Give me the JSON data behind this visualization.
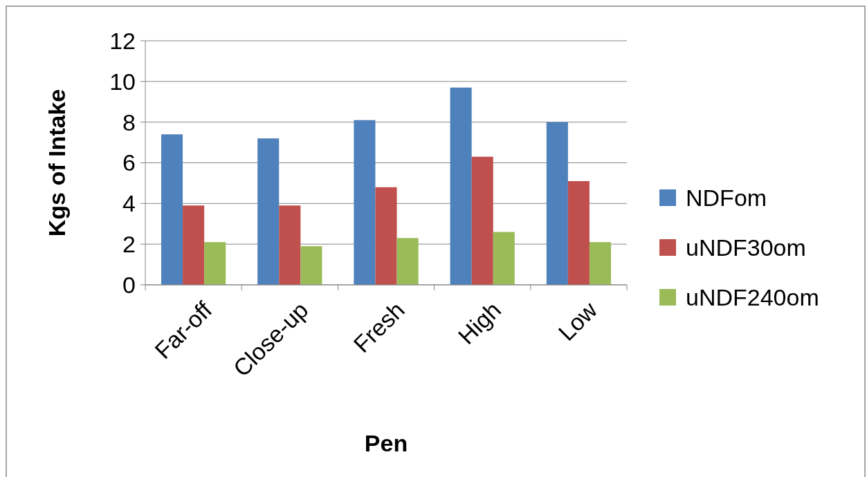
{
  "chart_data": {
    "type": "bar",
    "xlabel": "Pen",
    "ylabel": "Kgs of Intake",
    "categories": [
      "Far-off",
      "Close-up",
      "Fresh",
      "High",
      "Low"
    ],
    "series": [
      {
        "name": "NDFom",
        "color": "#4f81bd",
        "values": [
          7.4,
          7.2,
          8.1,
          9.7,
          8.0
        ]
      },
      {
        "name": "uNDF30om",
        "color": "#c0504d",
        "values": [
          3.9,
          3.9,
          4.8,
          6.3,
          5.1
        ]
      },
      {
        "name": "uNDF240om",
        "color": "#9bbb59",
        "values": [
          2.1,
          1.9,
          2.3,
          2.6,
          2.1
        ]
      }
    ],
    "ylim": [
      0,
      12
    ],
    "yticks": [
      0,
      2,
      4,
      6,
      8,
      10,
      12
    ],
    "grid": "y",
    "legend": "right"
  }
}
